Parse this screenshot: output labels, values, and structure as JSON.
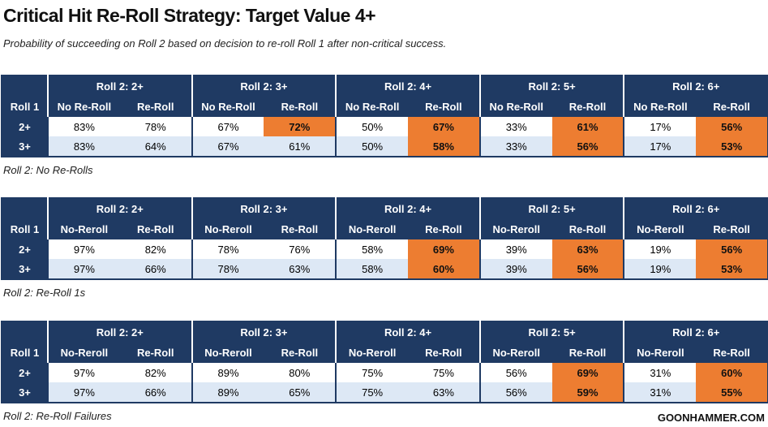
{
  "title": "Critical Hit Re-Roll Strategy: Target Value 4+",
  "subtitle": "Probability of succeeding on Roll 2 based on decision to re-roll Roll 1 after non-critical success.",
  "tables": [
    {
      "row_header": "Roll 1",
      "groups": [
        {
          "title": "Roll 2: 2+",
          "columns": [
            "No Re-Roll",
            "Re-Roll"
          ]
        },
        {
          "title": "Roll 2: 3+",
          "columns": [
            "No Re-Roll",
            "Re-Roll"
          ]
        },
        {
          "title": "Roll 2: 4+",
          "columns": [
            "No Re-Roll",
            "Re-Roll"
          ]
        },
        {
          "title": "Roll 2: 5+",
          "columns": [
            "No Re-Roll",
            "Re-Roll"
          ]
        },
        {
          "title": "Roll 2: 6+",
          "columns": [
            "No Re-Roll",
            "Re-Roll"
          ]
        }
      ],
      "rows": [
        {
          "label": "2+",
          "cells": [
            "83%",
            "78%",
            "67%",
            "72%",
            "50%",
            "67%",
            "33%",
            "61%",
            "17%",
            "56%"
          ],
          "highlighted": [
            3,
            5,
            7,
            9
          ]
        },
        {
          "label": "3+",
          "cells": [
            "83%",
            "64%",
            "67%",
            "61%",
            "50%",
            "58%",
            "33%",
            "56%",
            "17%",
            "53%"
          ],
          "highlighted": [
            5,
            7,
            9
          ]
        }
      ],
      "caption": "Roll 2: No Re-Rolls"
    },
    {
      "row_header": "Roll 1",
      "groups": [
        {
          "title": "Roll 2: 2+",
          "columns": [
            "No-Reroll",
            "Re-Roll"
          ]
        },
        {
          "title": "Roll 2: 3+",
          "columns": [
            "No-Reroll",
            "Re-Roll"
          ]
        },
        {
          "title": "Roll 2: 4+",
          "columns": [
            "No-Reroll",
            "Re-Roll"
          ]
        },
        {
          "title": "Roll 2: 5+",
          "columns": [
            "No-Reroll",
            "Re-Roll"
          ]
        },
        {
          "title": "Roll 2: 6+",
          "columns": [
            "No-Reroll",
            "Re-Roll"
          ]
        }
      ],
      "rows": [
        {
          "label": "2+",
          "cells": [
            "97%",
            "82%",
            "78%",
            "76%",
            "58%",
            "69%",
            "39%",
            "63%",
            "19%",
            "56%"
          ],
          "highlighted": [
            5,
            7,
            9
          ]
        },
        {
          "label": "3+",
          "cells": [
            "97%",
            "66%",
            "78%",
            "63%",
            "58%",
            "60%",
            "39%",
            "56%",
            "19%",
            "53%"
          ],
          "highlighted": [
            5,
            7,
            9
          ]
        }
      ],
      "caption": "Roll 2: Re-Roll 1s"
    },
    {
      "row_header": "Roll 1",
      "groups": [
        {
          "title": "Roll 2: 2+",
          "columns": [
            "No-Reroll",
            "Re-Roll"
          ]
        },
        {
          "title": "Roll 2: 3+",
          "columns": [
            "No-Reroll",
            "Re-Roll"
          ]
        },
        {
          "title": "Roll 2: 4+",
          "columns": [
            "No-Reroll",
            "Re-Roll"
          ]
        },
        {
          "title": "Roll 2: 5+",
          "columns": [
            "No-Reroll",
            "Re-Roll"
          ]
        },
        {
          "title": "Roll 2: 6+",
          "columns": [
            "No-Reroll",
            "Re-Roll"
          ]
        }
      ],
      "rows": [
        {
          "label": "2+",
          "cells": [
            "97%",
            "82%",
            "89%",
            "80%",
            "75%",
            "75%",
            "56%",
            "69%",
            "31%",
            "60%"
          ],
          "highlighted": [
            7,
            9
          ]
        },
        {
          "label": "3+",
          "cells": [
            "97%",
            "66%",
            "89%",
            "65%",
            "75%",
            "63%",
            "56%",
            "59%",
            "31%",
            "55%"
          ],
          "highlighted": [
            7,
            9
          ]
        }
      ],
      "caption": "Roll 2: Re-Roll Failures"
    }
  ],
  "footer": "GOONHAMMER.COM"
}
